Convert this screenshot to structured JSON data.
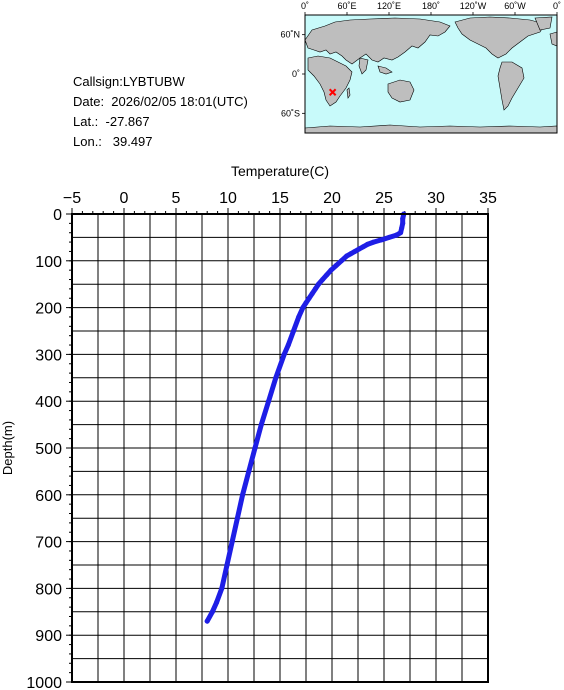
{
  "info": {
    "callsign": "Callsign:LYBTUBW",
    "date": "Date:  2026/02/05 18:01(UTC)",
    "lat": "Lat.:  -27.867",
    "lon": "Lon.:   39.497"
  },
  "map": {
    "lon_labels": [
      "0˚",
      "60˚E",
      "120˚E",
      "180˚",
      "120˚W",
      "60˚W",
      "0˚"
    ],
    "lat_labels": [
      "60˚N",
      "0˚",
      "60˚S"
    ],
    "marker": {
      "lat": -27.867,
      "lon": 39.497,
      "color": "#ff0000"
    },
    "ocean_color": "#c8fafa",
    "land_color": "#bebebe"
  },
  "chart_data": {
    "type": "line",
    "xlabel": "Temperature(C)",
    "ylabel": "Depth(m)",
    "xlim": [
      -5,
      35
    ],
    "ylim": [
      1000,
      0
    ],
    "x_ticks": [
      "-5",
      "0",
      "5",
      "10",
      "15",
      "20",
      "25",
      "30",
      "35"
    ],
    "y_ticks": [
      "0",
      "100",
      "200",
      "300",
      "400",
      "500",
      "600",
      "700",
      "800",
      "900",
      "1000"
    ],
    "x_axis_position": "top",
    "grid": true,
    "series": [
      {
        "color": "#1e1ee6",
        "depth": [
          0,
          10,
          20,
          30,
          40,
          45,
          50,
          55,
          60,
          65,
          70,
          75,
          80,
          85,
          90,
          100,
          110,
          120,
          130,
          140,
          150,
          160,
          170,
          180,
          190,
          200,
          220,
          250,
          280,
          300,
          350,
          400,
          450,
          500,
          550,
          600,
          650,
          700,
          750,
          800,
          830,
          850,
          870
        ],
        "temp": [
          26.9,
          26.8,
          26.8,
          26.7,
          26.6,
          26.2,
          25.5,
          24.8,
          24.0,
          23.4,
          23.0,
          22.6,
          22.2,
          21.8,
          21.4,
          20.9,
          20.4,
          19.9,
          19.5,
          19.1,
          18.7,
          18.4,
          18.1,
          17.8,
          17.5,
          17.2,
          16.8,
          16.3,
          15.8,
          15.4,
          14.6,
          13.9,
          13.2,
          12.6,
          12.0,
          11.4,
          10.9,
          10.4,
          9.9,
          9.4,
          8.9,
          8.5,
          8.0
        ]
      }
    ]
  }
}
